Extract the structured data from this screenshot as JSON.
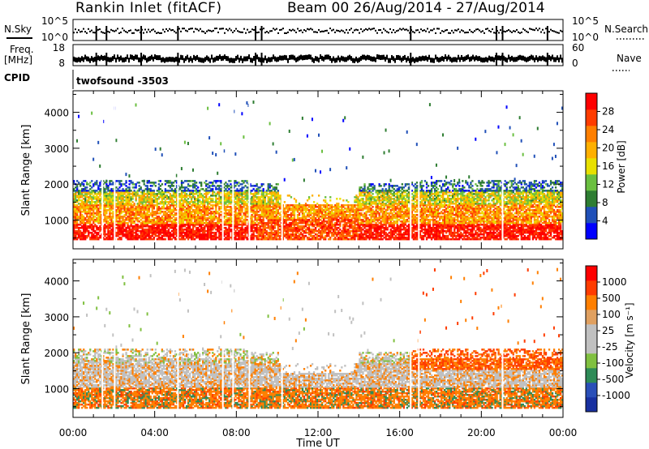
{
  "header": {
    "station": "Rankin Inlet (fitACF)",
    "beam_date": "Beam 00 26/Aug/2014 - 27/Aug/2014"
  },
  "nsky_panel": {
    "left_label": "N.Sky",
    "left_ticks": [
      "10^5",
      "10^0"
    ],
    "right_ticks": [
      "10^5",
      "10^0"
    ],
    "right_label": "N.Search"
  },
  "freq_panel": {
    "left_label_1": "Freq.",
    "left_label_2": "[MHz]",
    "left_ticks": [
      "18",
      "8"
    ],
    "right_ticks": [
      "60",
      "0"
    ],
    "right_label": "Nave"
  },
  "cpid": {
    "label": "CPID",
    "program": "twofsound -3503"
  },
  "colors": {
    "power": [
      "#0000ff",
      "#2050b8",
      "#2e7d32",
      "#6abf40",
      "#e8e000",
      "#ffb000",
      "#ff7f00",
      "#ff3c00",
      "#ff0000"
    ],
    "velocity": [
      "#ff0000",
      "#ff3c00",
      "#ff7f00",
      "#e0a060",
      "#c0c0c0",
      "#c0c0c0",
      "#80c040",
      "#2e8b57",
      "#2a4fb8",
      "#1830a0"
    ]
  },
  "chart_data": [
    {
      "type": "heatmap",
      "name": "power",
      "ylabel": "Slant Range [km]",
      "ylim": [
        200,
        4600
      ],
      "yticks": [
        "1000",
        "2000",
        "3000",
        "4000"
      ],
      "xlim": [
        0,
        24
      ],
      "colorbar": {
        "label": "Power [dB]",
        "ticks": [
          "4",
          "8",
          "12",
          "16",
          "20",
          "24",
          "28"
        ],
        "range": [
          0,
          32
        ]
      }
    },
    {
      "type": "heatmap",
      "name": "velocity",
      "ylabel": "Slant Range [km]",
      "ylim": [
        200,
        4600
      ],
      "yticks": [
        "1000",
        "2000",
        "3000",
        "4000"
      ],
      "xlim": [
        0,
        24
      ],
      "xticks": [
        "00:00",
        "04:00",
        "08:00",
        "12:00",
        "16:00",
        "20:00",
        "00:00"
      ],
      "xlabel": "Time UT",
      "colorbar": {
        "label": "Velocity [m s⁻¹]",
        "ticks": [
          "1000",
          "500",
          "100",
          "25",
          "-25",
          "-100",
          "-500",
          "-1000"
        ]
      }
    }
  ]
}
